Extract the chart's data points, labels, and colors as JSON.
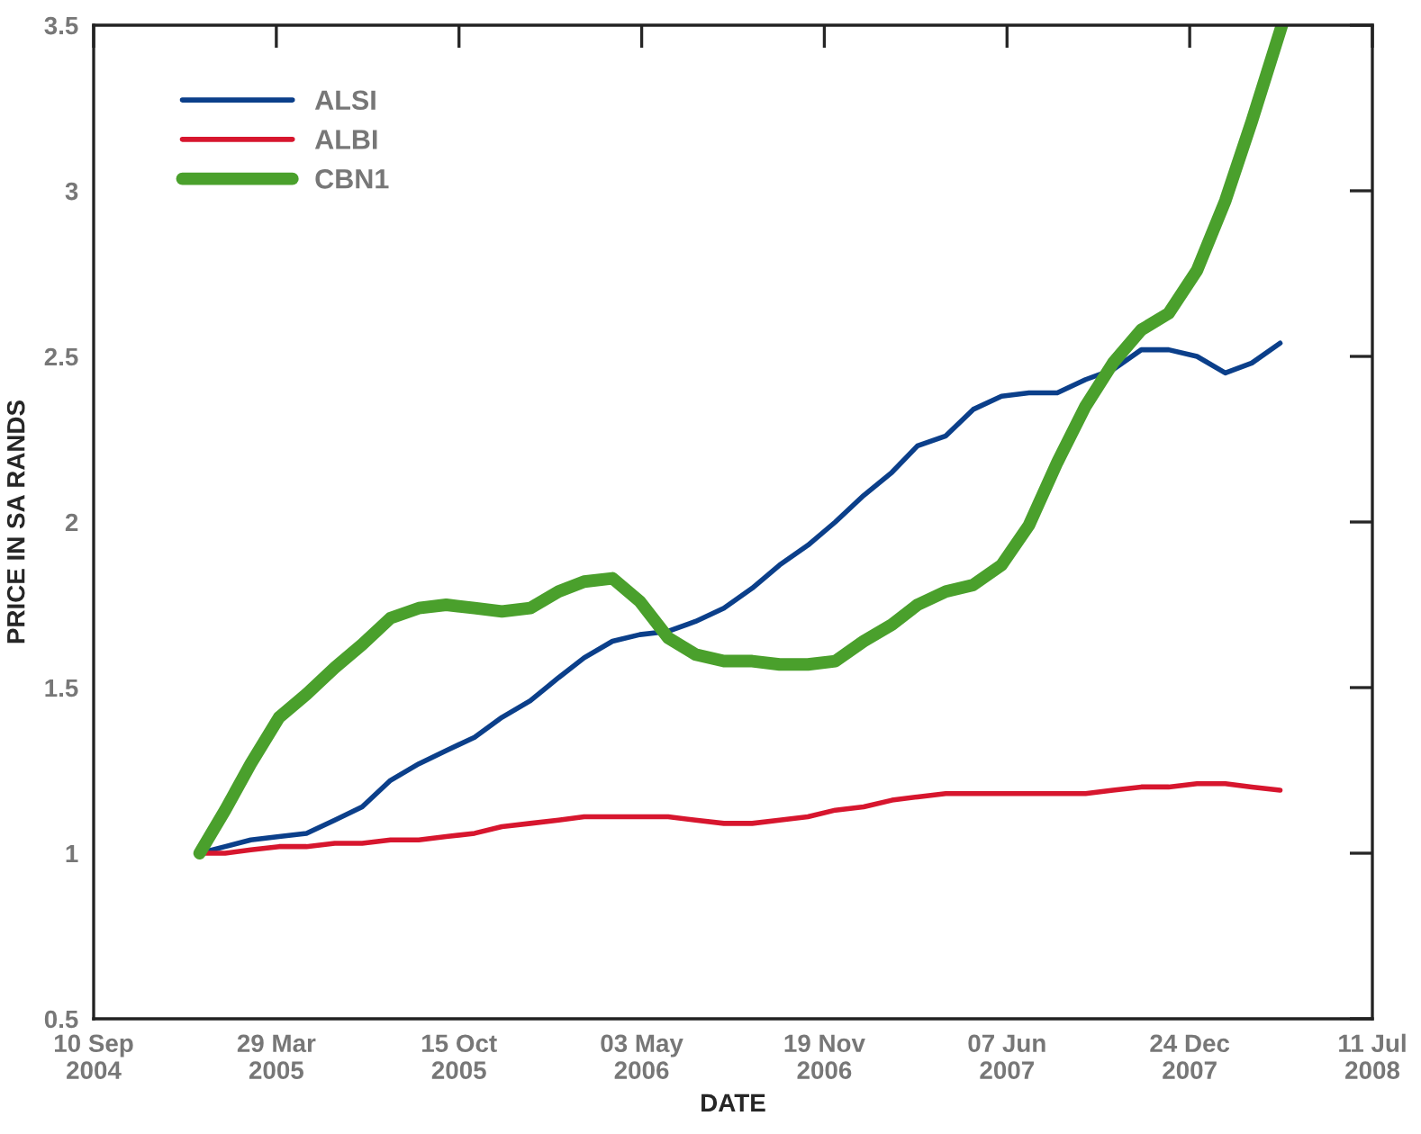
{
  "chart_data": {
    "type": "line",
    "xlabel": "DATE",
    "ylabel": "PRICE IN SA RANDS",
    "x": [
      "2005-01-04",
      "2005-02-01",
      "2005-03-01",
      "2005-04-01",
      "2005-05-01",
      "2005-06-01",
      "2005-07-01",
      "2005-08-01",
      "2005-09-01",
      "2005-10-01",
      "2005-11-01",
      "2005-12-01",
      "2006-01-01",
      "2006-02-01",
      "2006-03-01",
      "2006-04-01",
      "2006-05-01",
      "2006-06-01",
      "2006-07-01",
      "2006-08-01",
      "2006-09-01",
      "2006-10-01",
      "2006-11-01",
      "2006-12-01",
      "2007-01-01",
      "2007-02-01",
      "2007-03-01",
      "2007-04-01",
      "2007-05-01",
      "2007-06-01",
      "2007-07-01",
      "2007-08-01",
      "2007-09-01",
      "2007-10-01",
      "2007-11-01",
      "2007-12-01",
      "2008-01-01",
      "2008-02-01",
      "2008-03-01",
      "2008-04-01"
    ],
    "series": [
      {
        "name": "ALSI",
        "color": "#0b3f8a",
        "values": [
          1.0,
          1.02,
          1.04,
          1.05,
          1.06,
          1.1,
          1.14,
          1.22,
          1.27,
          1.31,
          1.35,
          1.41,
          1.46,
          1.53,
          1.59,
          1.64,
          1.66,
          1.67,
          1.7,
          1.74,
          1.8,
          1.87,
          1.93,
          2.0,
          2.08,
          2.15,
          2.23,
          2.26,
          2.34,
          2.38,
          2.39,
          2.39,
          2.43,
          2.46,
          2.52,
          2.52,
          2.5,
          2.45,
          2.48,
          2.54
        ]
      },
      {
        "name": "ALBI",
        "color": "#d7162e",
        "values": [
          1.0,
          1.0,
          1.01,
          1.02,
          1.02,
          1.03,
          1.03,
          1.04,
          1.04,
          1.05,
          1.06,
          1.08,
          1.09,
          1.1,
          1.11,
          1.11,
          1.11,
          1.11,
          1.1,
          1.09,
          1.09,
          1.1,
          1.11,
          1.13,
          1.14,
          1.16,
          1.17,
          1.18,
          1.18,
          1.18,
          1.18,
          1.18,
          1.18,
          1.19,
          1.2,
          1.2,
          1.21,
          1.21,
          1.2,
          1.19
        ]
      },
      {
        "name": "CBN1",
        "color": "#4aa02c",
        "x": [
          "2005-01-04",
          "2005-02-01",
          "2005-03-01",
          "2005-04-01",
          "2005-05-01",
          "2005-06-01",
          "2005-07-01",
          "2005-08-01",
          "2005-09-01",
          "2005-10-01",
          "2005-11-01",
          "2005-12-01",
          "2006-01-01",
          "2006-02-01",
          "2006-03-01",
          "2006-04-01",
          "2006-05-01",
          "2006-06-01",
          "2006-07-01",
          "2006-08-01",
          "2006-09-01",
          "2006-10-01",
          "2006-11-01",
          "2006-12-01",
          "2007-01-01",
          "2007-02-01",
          "2007-03-01",
          "2007-04-01",
          "2007-05-01",
          "2007-06-01",
          "2007-07-01",
          "2007-08-01",
          "2007-09-01",
          "2007-10-01",
          "2007-11-01",
          "2007-12-01",
          "2008-01-01",
          "2008-02-01",
          "2008-03-01",
          "2008-04-03"
        ],
        "values": [
          1.0,
          1.13,
          1.27,
          1.41,
          1.48,
          1.56,
          1.63,
          1.71,
          1.74,
          1.75,
          1.74,
          1.73,
          1.74,
          1.79,
          1.82,
          1.83,
          1.76,
          1.65,
          1.6,
          1.58,
          1.58,
          1.57,
          1.57,
          1.58,
          1.64,
          1.69,
          1.75,
          1.79,
          1.81,
          1.87,
          1.99,
          2.18,
          2.35,
          2.48,
          2.58,
          2.63,
          2.76,
          2.97,
          3.21,
          3.5
        ]
      }
    ],
    "xlim": [
      "2004-09-10",
      "2008-07-11"
    ],
    "xticks": [
      {
        "value": "2004-09-10",
        "label": "10 Sep\n2004"
      },
      {
        "value": "2005-03-29",
        "label": "29 Mar\n2005"
      },
      {
        "value": "2005-10-15",
        "label": "15 Oct\n2005"
      },
      {
        "value": "2006-05-03",
        "label": "03 May\n2006"
      },
      {
        "value": "2006-11-19",
        "label": "19 Nov\n2006"
      },
      {
        "value": "2007-06-07",
        "label": "07 Jun\n2007"
      },
      {
        "value": "2007-12-24",
        "label": "24 Dec\n2007"
      },
      {
        "value": "2008-07-11",
        "label": "11 Jul\n2008"
      }
    ],
    "ylim": [
      0.5,
      3.5
    ],
    "yticks": [
      0.5,
      1,
      1.5,
      2,
      2.5,
      3,
      3.5
    ],
    "grid": false,
    "legend": "top left",
    "line_style": "solid",
    "marker": "none"
  }
}
